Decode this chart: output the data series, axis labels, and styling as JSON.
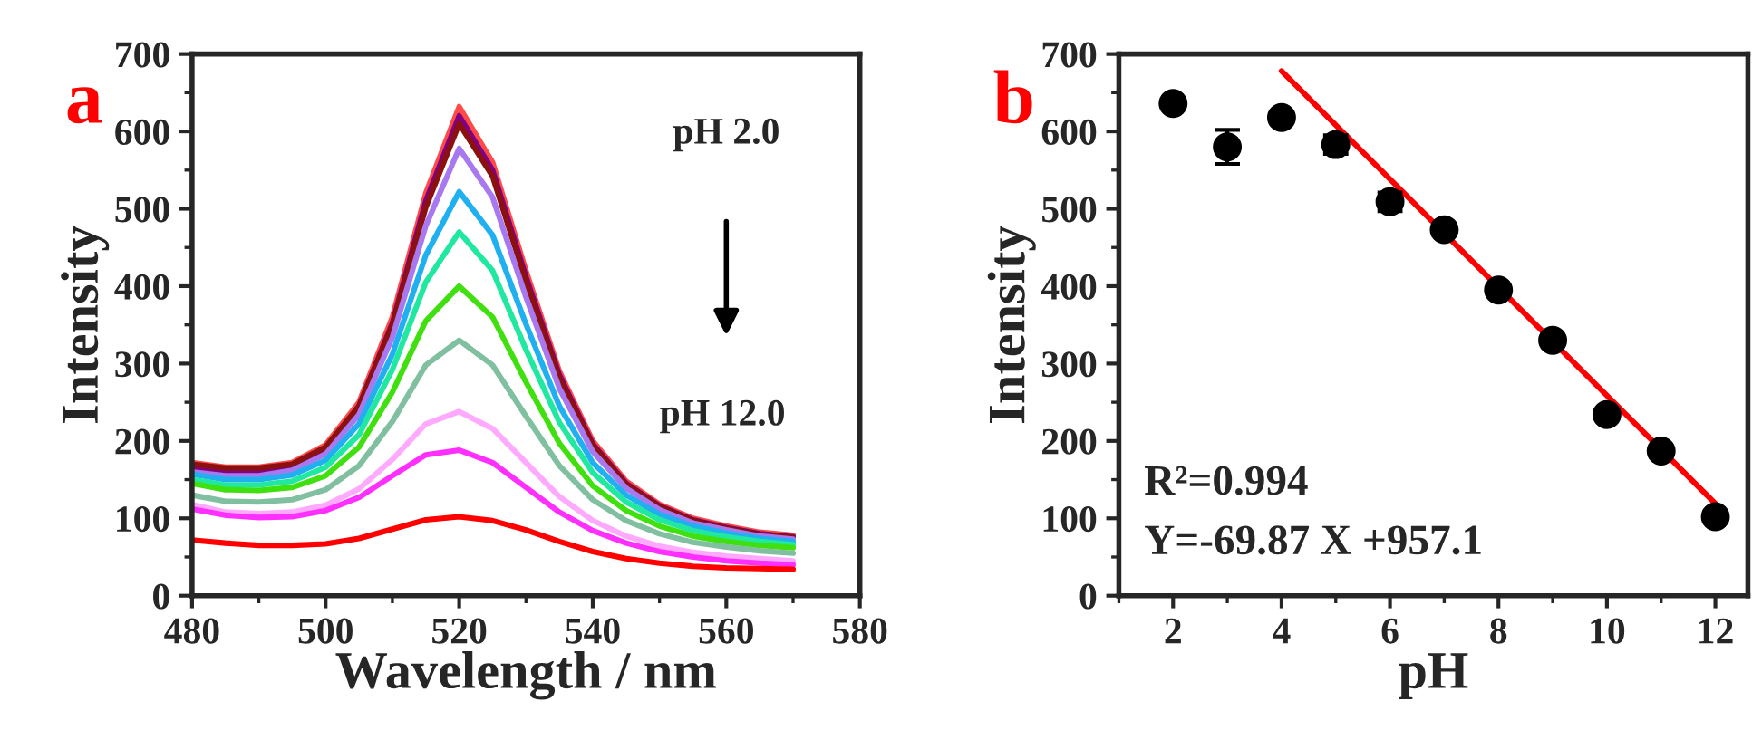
{
  "chart_data": [
    {
      "type": "line",
      "title": "a",
      "xlabel": "Wavelength / nm",
      "ylabel": "Intensity",
      "x": [
        480,
        485,
        490,
        495,
        500,
        505,
        510,
        515,
        520,
        525,
        530,
        535,
        540,
        545,
        550,
        555,
        560,
        565,
        570
      ],
      "series": [
        {
          "color": "#ff4a4a",
          "values": [
            172,
            166,
            166,
            172,
            195,
            250,
            360,
            520,
            632,
            560,
            420,
            290,
            200,
            148,
            118,
            100,
            90,
            82,
            78
          ]
        },
        {
          "color": "#800080",
          "values": [
            165,
            160,
            160,
            167,
            190,
            245,
            352,
            510,
            620,
            550,
            412,
            285,
            196,
            145,
            116,
            98,
            88,
            80,
            76
          ]
        },
        {
          "color": "#8b1010",
          "values": [
            170,
            165,
            165,
            170,
            192,
            245,
            350,
            502,
            610,
            542,
            406,
            281,
            194,
            144,
            115,
            97,
            87,
            79,
            75
          ]
        },
        {
          "color": "#a878f0",
          "values": [
            160,
            155,
            155,
            162,
            183,
            234,
            334,
            478,
            578,
            515,
            386,
            268,
            186,
            139,
            111,
            94,
            85,
            77,
            73
          ]
        },
        {
          "color": "#20b0f0",
          "values": [
            157,
            150,
            150,
            156,
            175,
            222,
            312,
            440,
            522,
            466,
            351,
            245,
            172,
            130,
            105,
            90,
            81,
            74,
            70
          ]
        },
        {
          "color": "#20e8a0",
          "values": [
            150,
            143,
            143,
            148,
            166,
            208,
            292,
            405,
            470,
            420,
            318,
            224,
            159,
            121,
            98,
            84,
            76,
            70,
            66
          ]
        },
        {
          "color": "#40e010",
          "values": [
            145,
            137,
            136,
            140,
            155,
            192,
            263,
            355,
            400,
            360,
            276,
            197,
            142,
            110,
            90,
            77,
            70,
            65,
            62
          ]
        },
        {
          "color": "#80c0a0",
          "values": [
            130,
            122,
            121,
            124,
            137,
            168,
            225,
            298,
            330,
            298,
            232,
            168,
            124,
            97,
            80,
            69,
            63,
            58,
            55
          ]
        },
        {
          "color": "#ffaaff",
          "values": [
            118,
            108,
            106,
            108,
            117,
            138,
            176,
            222,
            238,
            216,
            172,
            128,
            97,
            77,
            64,
            56,
            51,
            48,
            45
          ]
        },
        {
          "color": "#ff30ff",
          "values": [
            112,
            104,
            101,
            102,
            110,
            127,
            155,
            182,
            188,
            172,
            140,
            108,
            84,
            68,
            57,
            50,
            45,
            42,
            40
          ]
        },
        {
          "color": "#ff0000",
          "values": [
            72,
            68,
            65,
            65,
            67,
            74,
            86,
            98,
            102,
            97,
            85,
            70,
            57,
            48,
            42,
            38,
            36,
            35,
            34
          ]
        }
      ],
      "xlim": [
        480,
        580
      ],
      "ylim": [
        0,
        700
      ],
      "xticks": [
        480,
        500,
        520,
        540,
        560,
        580
      ],
      "yticks": [
        0,
        100,
        200,
        300,
        400,
        500,
        600,
        700
      ],
      "annotations": [
        "pH 2.0",
        "pH 12.0"
      ]
    },
    {
      "type": "scatter",
      "title": "b",
      "xlabel": "pH",
      "ylabel": "Intensity",
      "series": [
        {
          "type": "scatter",
          "marker": "circle",
          "color": "#000000",
          "x": [
            2,
            3,
            4,
            5,
            6,
            7,
            8,
            9,
            10,
            11,
            12
          ],
          "values": [
            636,
            580,
            618,
            583,
            509,
            473,
            395,
            330,
            234,
            187,
            102
          ],
          "errors": [
            6,
            22,
            6,
            12,
            12,
            6,
            6,
            6,
            6,
            6,
            6
          ]
        },
        {
          "type": "line",
          "color": "#ff0000",
          "x": [
            4,
            12
          ],
          "values": [
            678,
            119
          ]
        }
      ],
      "xlim": [
        1,
        12.6
      ],
      "ylim": [
        0,
        700
      ],
      "xticks": [
        2,
        4,
        6,
        8,
        10,
        12
      ],
      "yticks": [
        0,
        100,
        200,
        300,
        400,
        500,
        600,
        700
      ],
      "annotations": [
        "R²=0.994",
        "Y=-69.87 X +957.1"
      ]
    }
  ]
}
